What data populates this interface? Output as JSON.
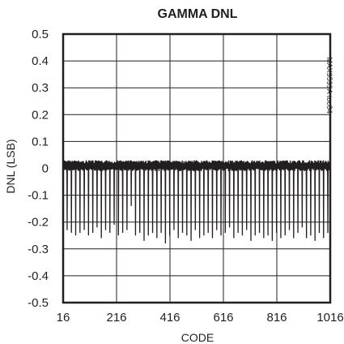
{
  "chart_data": {
    "type": "line",
    "title": "GAMMA DNL",
    "xlabel": "CODE",
    "ylabel": "DNL (LSB)",
    "side_label": "MAX9599A toc04",
    "xlim": [
      16,
      1016
    ],
    "ylim": [
      -0.5,
      0.5
    ],
    "x_ticks": [
      "16",
      "216",
      "416",
      "616",
      "816",
      "1016"
    ],
    "y_ticks": [
      "0.5",
      "0.4",
      "0.3",
      "0.2",
      "0.1",
      "0",
      "-0.1",
      "-0.2",
      "-0.3",
      "-0.4",
      "-0.5"
    ],
    "grid": true,
    "series": [
      {
        "color": "#231f20",
        "baseline_range": [
          -0.01,
          0.03
        ],
        "spike_period": 16,
        "spike_minima": [
          -0.23,
          -0.24,
          -0.25,
          -0.24,
          -0.23,
          -0.25,
          -0.24,
          -0.22,
          -0.26,
          -0.23,
          -0.24,
          -0.21,
          -0.25,
          -0.24,
          -0.23,
          -0.14,
          -0.25,
          -0.24,
          -0.27,
          -0.25,
          -0.24,
          -0.26,
          -0.24,
          -0.28,
          -0.25,
          -0.23,
          -0.26,
          -0.24,
          -0.25,
          -0.27,
          -0.23,
          -0.26,
          -0.25,
          -0.24,
          -0.26,
          -0.23,
          -0.25,
          -0.24,
          -0.22,
          -0.26,
          -0.24,
          -0.25,
          -0.23,
          -0.27,
          -0.25,
          -0.24,
          -0.26,
          -0.25,
          -0.27,
          -0.24,
          -0.26,
          -0.25,
          -0.23,
          -0.26,
          -0.24,
          -0.22,
          -0.26,
          -0.25,
          -0.27,
          -0.24,
          -0.26,
          -0.24,
          -0.25
        ]
      }
    ]
  }
}
